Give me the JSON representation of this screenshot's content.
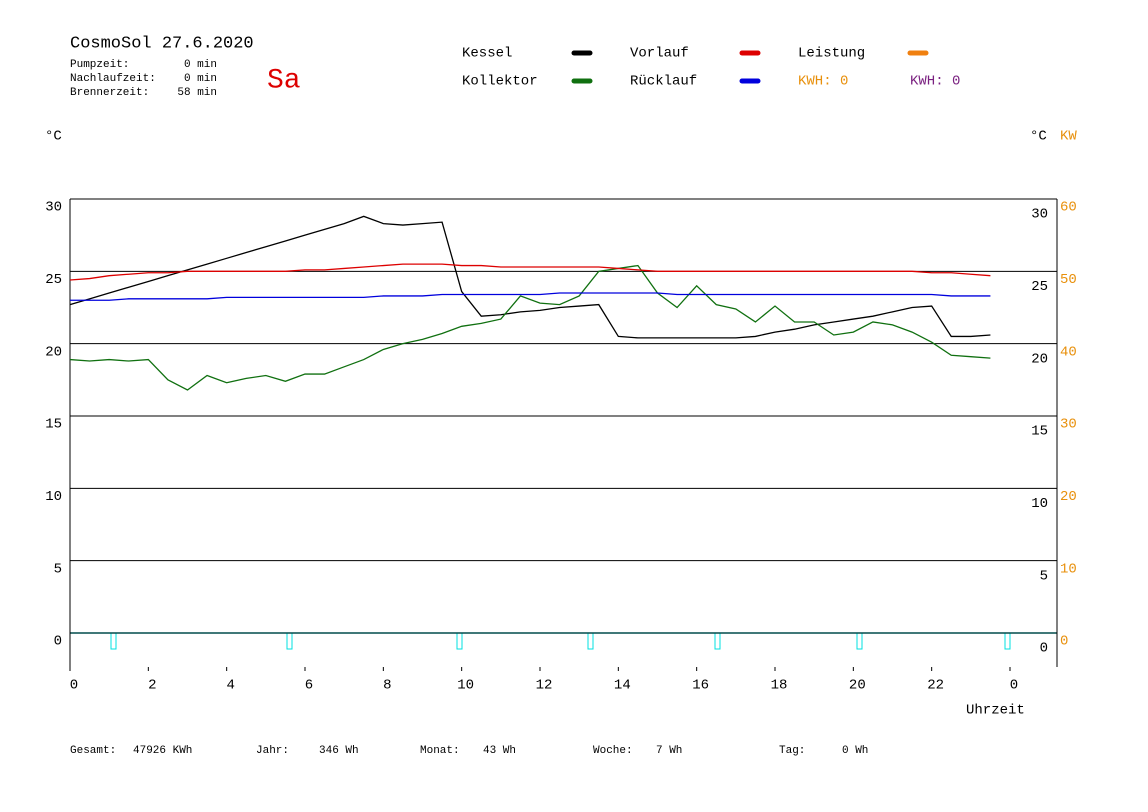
{
  "chart_data": {
    "type": "line",
    "title": "CosmoSol 27.6.2020",
    "day": "Sa",
    "stats": [
      {
        "label": "Pumpzeit:",
        "value": "0 min"
      },
      {
        "label": "Nachlaufzeit:",
        "value": "0 min"
      },
      {
        "label": "Brennerzeit:",
        "value": "58 min"
      }
    ],
    "kwh_labels": [
      {
        "label": "KWH: 0",
        "color": "#e8900c"
      },
      {
        "label": "KWH: 0",
        "color": "#7a2080"
      }
    ],
    "y_label": "°C",
    "y2_label": "°C",
    "y3_label": "KW",
    "x_label": "Uhrzeit",
    "xlim": [
      0,
      25.2
    ],
    "xticks": [
      0,
      2,
      4,
      6,
      8,
      10,
      12,
      14,
      16,
      18,
      20,
      22,
      {
        "value": 24,
        "label": "0"
      }
    ],
    "ylim": [
      -2.35,
      30
    ],
    "yticks": [
      0,
      5,
      10,
      15,
      20,
      25,
      30
    ],
    "y2lim": [
      -4.7,
      60
    ],
    "y2ticks": [
      0,
      10,
      20,
      30,
      40,
      50,
      60
    ],
    "grid": true,
    "x": [
      0,
      0.5,
      1,
      1.5,
      2,
      2.5,
      3,
      3.5,
      4,
      4.5,
      5,
      5.5,
      6,
      6.5,
      7,
      7.5,
      8,
      8.5,
      9,
      9.5,
      10,
      10.5,
      11,
      11.5,
      12,
      12.5,
      13,
      13.5,
      14,
      14.5,
      15,
      15.5,
      16,
      16.5,
      17,
      17.5,
      18,
      18.5,
      19,
      19.5,
      20,
      20.5,
      21,
      21.5,
      22,
      22.5,
      23,
      23.5
    ],
    "series": [
      {
        "name": "Kessel",
        "color": "#000000",
        "values": [
          22.7,
          23.1,
          23.5,
          23.9,
          24.3,
          24.7,
          25.1,
          25.5,
          25.9,
          26.3,
          26.7,
          27.1,
          27.5,
          27.9,
          28.3,
          28.8,
          28.3,
          28.2,
          28.3,
          28.4,
          23.6,
          21.9,
          22.0,
          22.2,
          22.3,
          22.5,
          22.6,
          22.7,
          20.5,
          20.4,
          20.4,
          20.4,
          20.4,
          20.4,
          20.4,
          20.5,
          20.8,
          21.0,
          21.3,
          21.5,
          21.7,
          21.9,
          22.2,
          22.5,
          22.6,
          20.5,
          20.5,
          20.6
        ]
      },
      {
        "name": "Kollektor",
        "color": "#107010",
        "values": [
          18.9,
          18.8,
          18.9,
          18.8,
          18.9,
          17.5,
          16.8,
          17.8,
          17.3,
          17.6,
          17.8,
          17.4,
          17.9,
          17.9,
          18.4,
          18.9,
          19.6,
          20.0,
          20.3,
          20.7,
          21.2,
          21.4,
          21.7,
          23.3,
          22.8,
          22.7,
          23.3,
          25.0,
          25.2,
          25.4,
          23.5,
          22.5,
          24.0,
          22.7,
          22.4,
          21.5,
          22.6,
          21.5,
          21.5,
          20.6,
          20.8,
          21.5,
          21.3,
          20.8,
          20.1,
          19.2,
          19.1,
          19.0
        ]
      },
      {
        "name": "Vorlauf",
        "color": "#dd0000",
        "values": [
          24.4,
          24.5,
          24.7,
          24.8,
          24.9,
          24.9,
          25.0,
          25.0,
          25.0,
          25.0,
          25.0,
          25.0,
          25.1,
          25.1,
          25.2,
          25.3,
          25.4,
          25.5,
          25.5,
          25.5,
          25.4,
          25.4,
          25.3,
          25.3,
          25.3,
          25.3,
          25.3,
          25.3,
          25.2,
          25.1,
          25.0,
          25.0,
          25.0,
          25.0,
          25.0,
          25.0,
          25.0,
          25.0,
          25.0,
          25.0,
          25.0,
          25.0,
          25.0,
          25.0,
          24.9,
          24.9,
          24.8,
          24.7
        ]
      },
      {
        "name": "Rücklauf",
        "color": "#0000dd",
        "values": [
          23.0,
          23.0,
          23.0,
          23.1,
          23.1,
          23.1,
          23.1,
          23.1,
          23.2,
          23.2,
          23.2,
          23.2,
          23.2,
          23.2,
          23.2,
          23.2,
          23.3,
          23.3,
          23.3,
          23.4,
          23.4,
          23.4,
          23.4,
          23.4,
          23.4,
          23.5,
          23.5,
          23.5,
          23.5,
          23.5,
          23.5,
          23.4,
          23.4,
          23.4,
          23.4,
          23.4,
          23.4,
          23.4,
          23.4,
          23.4,
          23.4,
          23.4,
          23.4,
          23.4,
          23.4,
          23.3,
          23.3,
          23.3
        ]
      },
      {
        "name": "Leistung",
        "color": "#f08010",
        "axis": "y2",
        "values": [
          null,
          null,
          null,
          null,
          null,
          null,
          null,
          null,
          null,
          null,
          null,
          null,
          null,
          null,
          null,
          null,
          null,
          null,
          null,
          null,
          null,
          null,
          null,
          null,
          null,
          null,
          null,
          null,
          null,
          null,
          null,
          null,
          null,
          null,
          null,
          null,
          null,
          null,
          null,
          null,
          null,
          null,
          null,
          null,
          null,
          null,
          null,
          null
        ]
      }
    ],
    "totals": [
      {
        "label": "Gesamt:",
        "value": "47926 KWh"
      },
      {
        "label": "Jahr:",
        "value": "346 Wh"
      },
      {
        "label": "Monat:",
        "value": "43 Wh"
      },
      {
        "label": "Woche:",
        "value": "7 Wh"
      },
      {
        "label": "Tag:",
        "value": "0 Wh"
      }
    ]
  }
}
